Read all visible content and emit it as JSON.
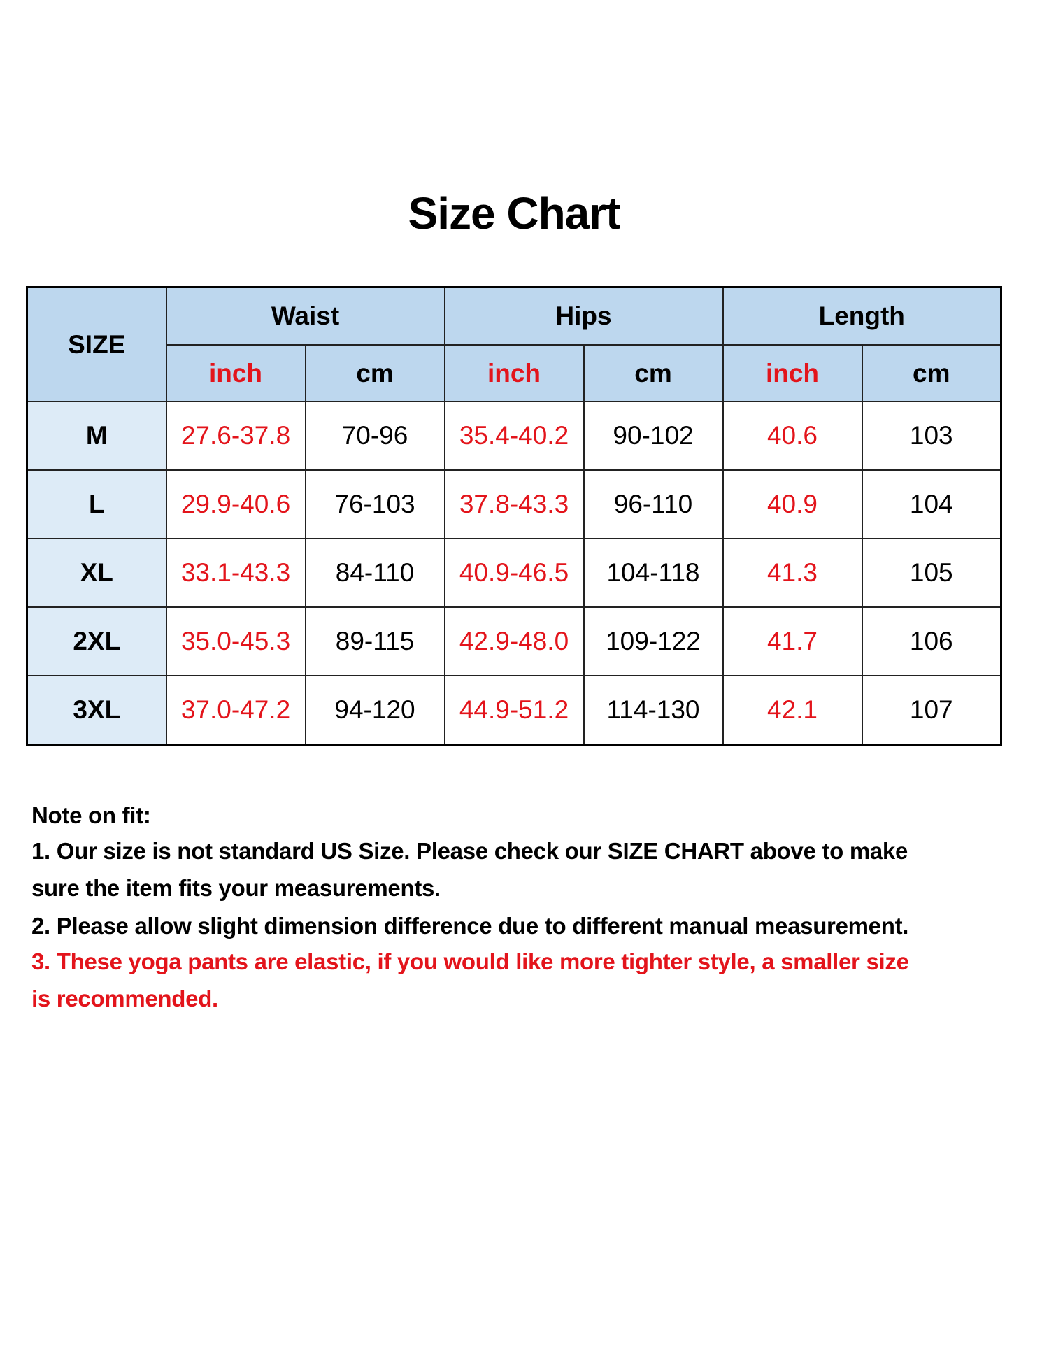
{
  "title": "Size Chart",
  "colors": {
    "header_bg": "#bdd7ee",
    "size_col_bg": "#ddebf7",
    "inch_text": "#e3141b",
    "cm_text": "#000000"
  },
  "table": {
    "size_header": "SIZE",
    "groups": [
      "Waist",
      "Hips",
      "Length"
    ],
    "units": [
      "inch",
      "cm",
      "inch",
      "cm",
      "inch",
      "cm"
    ],
    "rows": [
      {
        "size": "M",
        "values": [
          "27.6-37.8",
          "70-96",
          "35.4-40.2",
          "90-102",
          "40.6",
          "103"
        ]
      },
      {
        "size": "L",
        "values": [
          "29.9-40.6",
          "76-103",
          "37.8-43.3",
          "96-110",
          "40.9",
          "104"
        ]
      },
      {
        "size": "XL",
        "values": [
          "33.1-43.3",
          "84-110",
          "40.9-46.5",
          "104-118",
          "41.3",
          "105"
        ]
      },
      {
        "size": "2XL",
        "values": [
          "35.0-45.3",
          "89-115",
          "42.9-48.0",
          "109-122",
          "41.7",
          "106"
        ]
      },
      {
        "size": "3XL",
        "values": [
          "37.0-47.2",
          "94-120",
          "44.9-51.2",
          "114-130",
          "42.1",
          "107"
        ]
      }
    ]
  },
  "notes": {
    "heading": "Note on fit:",
    "note1_a": "1. Our size is not standard US Size. Please check our ",
    "note1_b": "SIZE CHART",
    "note1_c": " above to make",
    "note1_d": "sure the item fits your measurements.",
    "note2": "2. Please allow slight dimension difference due to different manual measurement.",
    "note3_a": "3. These yoga pants are elastic, if you would like more tighter style, a smaller size",
    "note3_b": "is recommended."
  }
}
